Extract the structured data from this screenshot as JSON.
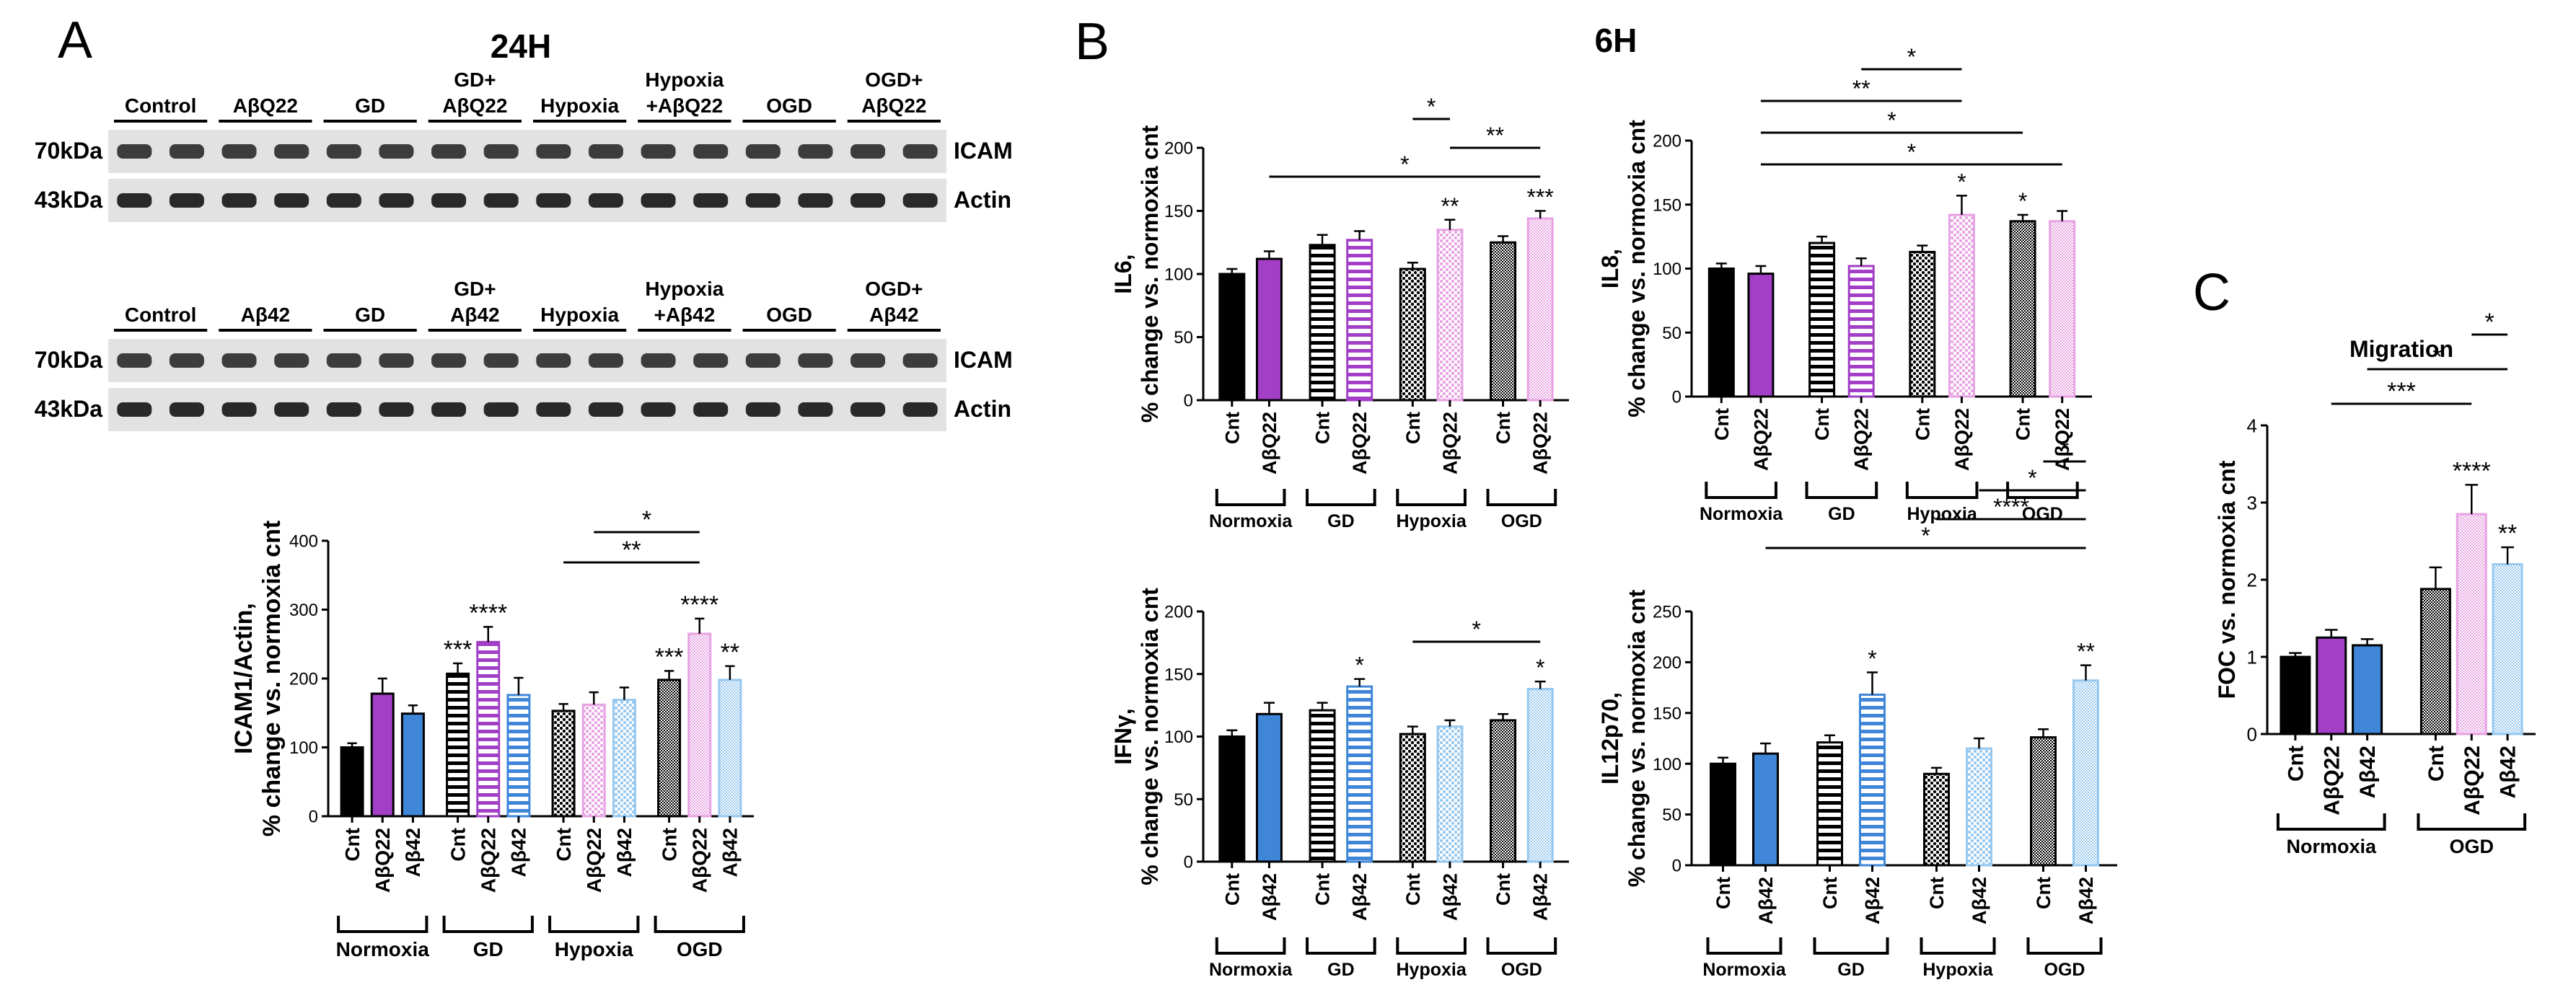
{
  "panels": {
    "A": {
      "letter": "A",
      "title": "24H",
      "blot1": {
        "groups": [
          "Control",
          "AβQ22",
          "GD",
          "GD+\nAβQ22",
          "Hypoxia",
          "Hypoxia\n+AβQ22",
          "OGD",
          "OGD+\nAβQ22"
        ],
        "rows": [
          {
            "size": "70kDa",
            "protein": "ICAM"
          },
          {
            "size": "43kDa",
            "protein": "Actin"
          }
        ]
      },
      "blot2": {
        "groups": [
          "Control",
          "Aβ42",
          "GD",
          "GD+\nAβ42",
          "Hypoxia",
          "Hypoxia\n+Aβ42",
          "OGD",
          "OGD+\nAβ42"
        ],
        "rows": [
          {
            "size": "70kDa",
            "protein": "ICAM"
          },
          {
            "size": "43kDa",
            "protein": "Actin"
          }
        ]
      }
    },
    "B": {
      "letter": "B",
      "title": "6H"
    },
    "C": {
      "letter": "C"
    }
  },
  "colors": {
    "black": "#000000",
    "purple": "#a23fc6",
    "blue": "#3f86d8",
    "pink": "#e7a3e3",
    "lightblue": "#97c8ef"
  },
  "chart_data": [
    {
      "type": "bar",
      "panel": "A",
      "ylabel": "ICAM1/Actin,\n% change vs. normoxia cnt",
      "ylim": [
        0,
        400
      ],
      "yticks": [
        0,
        100,
        200,
        300,
        400
      ],
      "categories": [
        "Cnt",
        "AβQ22",
        "Aβ42",
        "Cnt",
        "AβQ22",
        "Aβ42",
        "Cnt",
        "AβQ22",
        "Aβ42",
        "Cnt",
        "AβQ22",
        "Aβ42"
      ],
      "groups": [
        {
          "label": "Normoxia",
          "n": 3
        },
        {
          "label": "GD",
          "n": 3
        },
        {
          "label": "Hypoxia",
          "n": 3
        },
        {
          "label": "OGD",
          "n": 3
        }
      ],
      "values": [
        100,
        178,
        149,
        207,
        253,
        176,
        153,
        162,
        169,
        198,
        265,
        198
      ],
      "errors": [
        6,
        22,
        12,
        15,
        22,
        25,
        10,
        18,
        18,
        13,
        22,
        20
      ],
      "fills": [
        "black",
        "purple",
        "blue",
        "hstripe",
        "hstripe-purple",
        "hstripe-blue",
        "dots",
        "dots-pink",
        "dots-lightblue",
        "dense",
        "dense-pink",
        "dense-lightblue"
      ],
      "stars": [
        "",
        "",
        "",
        "***",
        "****",
        "",
        "",
        "",
        "",
        "***",
        "****",
        "**"
      ],
      "brackets": [
        {
          "from": 6,
          "to": 10,
          "label": "**"
        },
        {
          "from": 7,
          "to": 10,
          "label": "*"
        }
      ]
    },
    {
      "type": "bar",
      "panel": "B",
      "ylabel": "IL6,\n% change vs. normoxia cnt",
      "ylim": [
        0,
        200
      ],
      "yticks": [
        0,
        50,
        100,
        150,
        200
      ],
      "categories": [
        "Cnt",
        "AβQ22",
        "Cnt",
        "AβQ22",
        "Cnt",
        "AβQ22",
        "Cnt",
        "AβQ22"
      ],
      "groups": [
        {
          "label": "Normoxia",
          "n": 2
        },
        {
          "label": "GD",
          "n": 2
        },
        {
          "label": "Hypoxia",
          "n": 2
        },
        {
          "label": "OGD",
          "n": 2
        }
      ],
      "values": [
        100,
        112,
        123,
        127,
        104,
        135,
        125,
        144
      ],
      "errors": [
        4,
        6,
        8,
        7,
        5,
        8,
        5,
        6
      ],
      "fills": [
        "black",
        "purple",
        "hstripe",
        "hstripe-purple",
        "dots",
        "dots-pink",
        "dense",
        "dense-pink"
      ],
      "stars": [
        "",
        "",
        "",
        "",
        "",
        "**",
        "",
        "***"
      ],
      "brackets": [
        {
          "from": 1,
          "to": 7,
          "label": "*"
        },
        {
          "from": 5,
          "to": 7,
          "label": "**"
        },
        {
          "from": 4,
          "to": 5,
          "label": "*"
        }
      ]
    },
    {
      "type": "bar",
      "panel": "B",
      "ylabel": "IL8,\n% change vs. normoxia cnt",
      "ylim": [
        0,
        200
      ],
      "yticks": [
        0,
        50,
        100,
        150,
        200
      ],
      "categories": [
        "Cnt",
        "AβQ22",
        "Cnt",
        "AβQ22",
        "Cnt",
        "AβQ22",
        "Cnt",
        "AβQ22"
      ],
      "groups": [
        {
          "label": "Normoxia",
          "n": 2
        },
        {
          "label": "GD",
          "n": 2
        },
        {
          "label": "Hypoxia",
          "n": 2
        },
        {
          "label": "OGD",
          "n": 2
        }
      ],
      "values": [
        100,
        96,
        120,
        102,
        113,
        142,
        137,
        137
      ],
      "errors": [
        4,
        6,
        5,
        6,
        5,
        15,
        5,
        8
      ],
      "fills": [
        "black",
        "purple",
        "hstripe",
        "hstripe-purple",
        "dots",
        "dots-pink",
        "dense",
        "dense-pink"
      ],
      "stars": [
        "",
        "",
        "",
        "",
        "",
        "*",
        "*",
        ""
      ],
      "brackets": [
        {
          "from": 1,
          "to": 7,
          "label": "*"
        },
        {
          "from": 1,
          "to": 6,
          "label": "*"
        },
        {
          "from": 1,
          "to": 5,
          "label": "**"
        },
        {
          "from": 3,
          "to": 5,
          "label": "*"
        }
      ]
    },
    {
      "type": "bar",
      "panel": "B",
      "ylabel": "IFNγ,\n% change vs. normoxia cnt",
      "ylim": [
        0,
        200
      ],
      "yticks": [
        0,
        50,
        100,
        150,
        200
      ],
      "categories": [
        "Cnt",
        "Aβ42",
        "Cnt",
        "Aβ42",
        "Cnt",
        "Aβ42",
        "Cnt",
        "Aβ42"
      ],
      "groups": [
        {
          "label": "Normoxia",
          "n": 2
        },
        {
          "label": "GD",
          "n": 2
        },
        {
          "label": "Hypoxia",
          "n": 2
        },
        {
          "label": "OGD",
          "n": 2
        }
      ],
      "values": [
        100,
        118,
        121,
        140,
        102,
        108,
        113,
        138
      ],
      "errors": [
        5,
        9,
        6,
        6,
        6,
        5,
        5,
        6
      ],
      "fills": [
        "black",
        "blue",
        "hstripe",
        "hstripe-blue",
        "dots",
        "dots-lightblue",
        "dense",
        "dense-lightblue"
      ],
      "stars": [
        "",
        "",
        "",
        "*",
        "",
        "",
        "",
        "*"
      ],
      "brackets": [
        {
          "from": 4,
          "to": 7,
          "label": "*"
        }
      ]
    },
    {
      "type": "bar",
      "panel": "B",
      "ylabel": "IL12p70,\n% change vs. normoxia cnt",
      "ylim": [
        0,
        250
      ],
      "yticks": [
        0,
        50,
        100,
        150,
        200,
        250
      ],
      "categories": [
        "Cnt",
        "Aβ42",
        "Cnt",
        "Aβ42",
        "Cnt",
        "Aβ42",
        "Cnt",
        "Aβ42"
      ],
      "groups": [
        {
          "label": "Normoxia",
          "n": 2
        },
        {
          "label": "GD",
          "n": 2
        },
        {
          "label": "Hypoxia",
          "n": 2
        },
        {
          "label": "OGD",
          "n": 2
        }
      ],
      "values": [
        100,
        110,
        121,
        168,
        90,
        115,
        126,
        182
      ],
      "errors": [
        6,
        10,
        7,
        22,
        6,
        10,
        8,
        15
      ],
      "fills": [
        "black",
        "blue",
        "hstripe",
        "hstripe-blue",
        "dots",
        "dots-lightblue",
        "dense",
        "dense-lightblue"
      ],
      "stars": [
        "",
        "",
        "",
        "*",
        "",
        "",
        "",
        "**"
      ],
      "brackets": [
        {
          "from": 1,
          "to": 7,
          "label": "*"
        },
        {
          "from": 4,
          "to": 7,
          "label": "****"
        },
        {
          "from": 5,
          "to": 7,
          "label": "*"
        },
        {
          "from": 6,
          "to": 7,
          "label": "*"
        }
      ]
    },
    {
      "type": "bar",
      "panel": "C",
      "title": "Migration",
      "ylabel": "FOC vs. normoxia cnt",
      "ylim": [
        0,
        4
      ],
      "yticks": [
        0,
        1,
        2,
        3,
        4
      ],
      "categories": [
        "Cnt",
        "AβQ22",
        "Aβ42",
        "Cnt",
        "AβQ22",
        "Aβ42"
      ],
      "groups": [
        {
          "label": "Normoxia",
          "n": 3
        },
        {
          "label": "OGD",
          "n": 3
        }
      ],
      "values": [
        1.0,
        1.25,
        1.15,
        1.88,
        2.85,
        2.2
      ],
      "errors": [
        0.05,
        0.1,
        0.08,
        0.28,
        0.38,
        0.22
      ],
      "fills": [
        "black",
        "purple",
        "blue",
        "dense",
        "dense-pink",
        "dense-lightblue"
      ],
      "stars": [
        "",
        "",
        "",
        "",
        "****",
        "**"
      ],
      "brackets": [
        {
          "from": 1,
          "to": 4,
          "label": "***"
        },
        {
          "from": 2,
          "to": 5,
          "label": "*"
        },
        {
          "from": 4,
          "to": 5,
          "label": "*"
        }
      ]
    }
  ]
}
